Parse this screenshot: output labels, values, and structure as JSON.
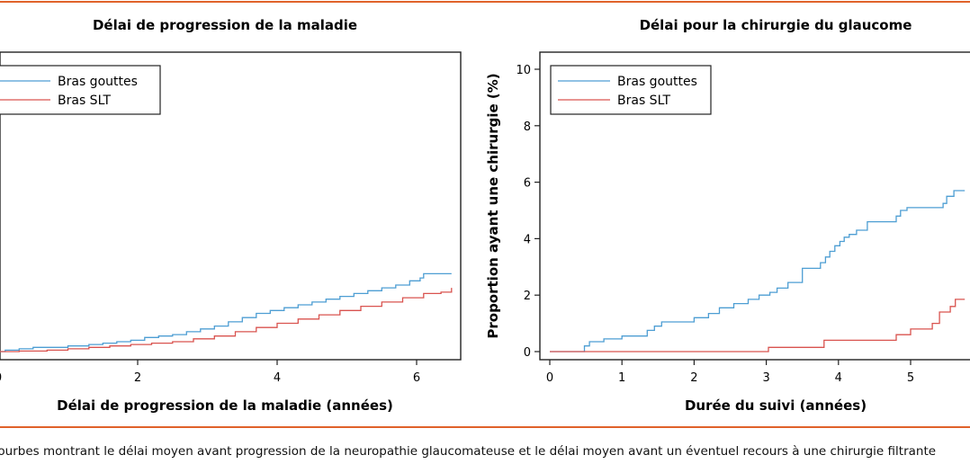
{
  "caption": "Courbes montrant le délai moyen avant progression de la neuropathie glaucomateuse et le délai moyen avant un éventuel recours à une chirurgie filtrante",
  "colors": {
    "gouttes": "#4d9ed3",
    "slt": "#d9534f",
    "rule": "#e0622a"
  },
  "chart_data": [
    {
      "type": "line",
      "step": true,
      "title": "Délai de progression de la maladie",
      "xlabel": "Délai de progression de la maladie (années)",
      "ylabel": "",
      "xlim": [
        0,
        6.6
      ],
      "xticks": [
        0,
        2,
        4,
        6
      ],
      "xtick_labels": [
        "0",
        "2",
        "4",
        "6"
      ],
      "ylim": [
        0,
        10
      ],
      "yticks": [],
      "legend": {
        "position": "top-left",
        "entries": [
          "Bras gouttes",
          "Bras SLT"
        ]
      },
      "series": [
        {
          "name": "Bras gouttes",
          "x": [
            0,
            0.1,
            0.3,
            0.5,
            0.8,
            1.0,
            1.3,
            1.5,
            1.7,
            1.9,
            2.1,
            2.3,
            2.5,
            2.7,
            2.9,
            3.1,
            3.3,
            3.5,
            3.7,
            3.9,
            4.1,
            4.3,
            4.5,
            4.7,
            4.9,
            5.1,
            5.3,
            5.5,
            5.7,
            5.9,
            6.05,
            6.1,
            6.5
          ],
          "y": [
            0,
            0.05,
            0.1,
            0.15,
            0.15,
            0.2,
            0.25,
            0.3,
            0.35,
            0.4,
            0.5,
            0.55,
            0.6,
            0.7,
            0.8,
            0.9,
            1.05,
            1.2,
            1.35,
            1.45,
            1.55,
            1.65,
            1.75,
            1.85,
            1.95,
            2.05,
            2.15,
            2.25,
            2.35,
            2.5,
            2.6,
            2.75,
            2.75
          ]
        },
        {
          "name": "Bras SLT",
          "x": [
            0,
            0.3,
            0.7,
            1.0,
            1.3,
            1.6,
            1.9,
            2.2,
            2.5,
            2.8,
            3.1,
            3.4,
            3.7,
            4.0,
            4.3,
            4.6,
            4.9,
            5.2,
            5.5,
            5.8,
            6.1,
            6.35,
            6.5
          ],
          "y": [
            0,
            0.02,
            0.05,
            0.1,
            0.15,
            0.2,
            0.25,
            0.3,
            0.35,
            0.45,
            0.55,
            0.7,
            0.85,
            1.0,
            1.15,
            1.3,
            1.45,
            1.6,
            1.75,
            1.9,
            2.05,
            2.1,
            2.25
          ]
        }
      ]
    },
    {
      "type": "line",
      "step": true,
      "title": "Délai pour la chirurgie du glaucome",
      "xlabel": "Durée du suivi (années)",
      "ylabel": "Proportion ayant une chirurgie (%)",
      "xlim": [
        0,
        6
      ],
      "xticks": [
        0,
        1,
        2,
        3,
        4,
        5
      ],
      "xtick_labels": [
        "0",
        "1",
        "2",
        "3",
        "4",
        "5"
      ],
      "ylim": [
        0,
        10
      ],
      "yticks": [
        0,
        2,
        4,
        6,
        8,
        10
      ],
      "ytick_labels": [
        "0",
        "2",
        "4",
        "6",
        "8",
        "10"
      ],
      "legend": {
        "position": "top-left",
        "entries": [
          "Bras gouttes",
          "Bras SLT"
        ]
      },
      "series": [
        {
          "name": "Bras gouttes",
          "x": [
            0,
            0.48,
            0.55,
            0.75,
            1.0,
            1.35,
            1.45,
            1.55,
            2.0,
            2.2,
            2.35,
            2.55,
            2.75,
            2.9,
            3.05,
            3.15,
            3.3,
            3.5,
            3.75,
            3.82,
            3.88,
            3.95,
            4.02,
            4.08,
            4.15,
            4.25,
            4.4,
            4.8,
            4.86,
            4.95,
            5.45,
            5.5,
            5.6,
            5.75
          ],
          "y": [
            0,
            0.2,
            0.35,
            0.45,
            0.55,
            0.75,
            0.9,
            1.05,
            1.2,
            1.35,
            1.55,
            1.7,
            1.85,
            2.0,
            2.1,
            2.25,
            2.45,
            2.95,
            3.15,
            3.35,
            3.55,
            3.75,
            3.9,
            4.05,
            4.15,
            4.3,
            4.6,
            4.8,
            5.0,
            5.1,
            5.25,
            5.5,
            5.7,
            5.7
          ]
        },
        {
          "name": "Bras SLT",
          "x": [
            0,
            3.03,
            3.8,
            4.8,
            5.0,
            5.3,
            5.4,
            5.55,
            5.62,
            5.75
          ],
          "y": [
            0,
            0.15,
            0.4,
            0.6,
            0.8,
            1.0,
            1.4,
            1.6,
            1.85,
            1.85
          ]
        }
      ]
    }
  ]
}
